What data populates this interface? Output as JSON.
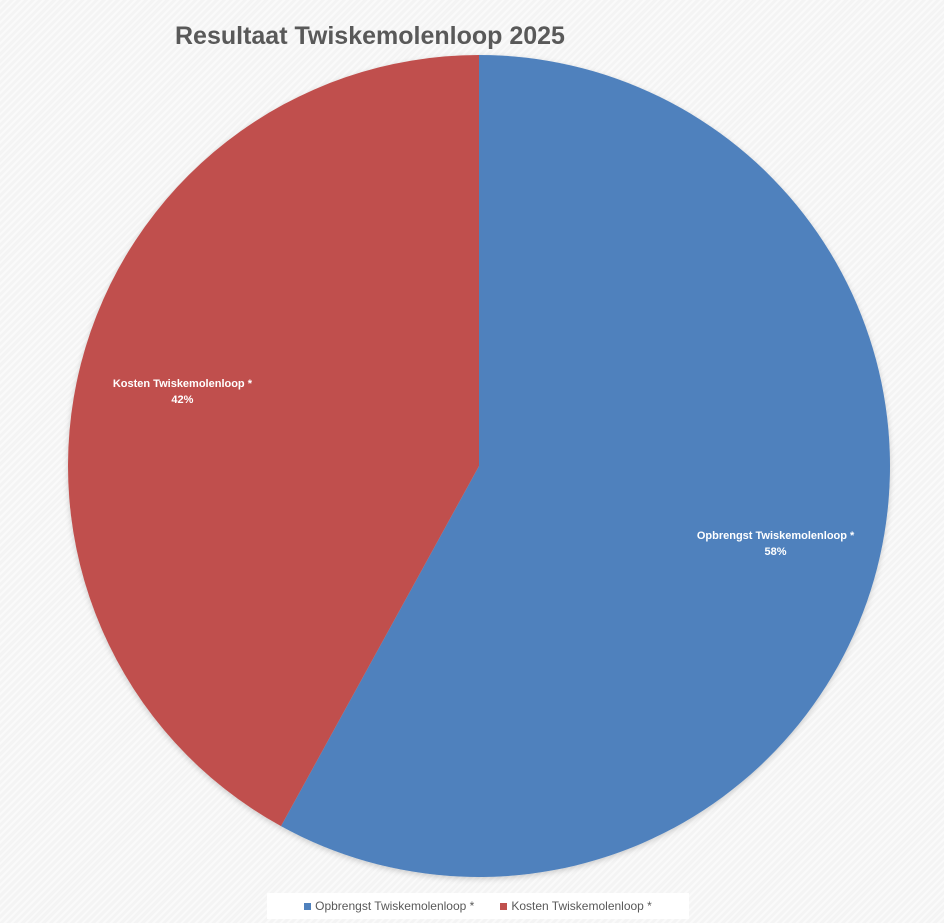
{
  "chart_data": {
    "type": "pie",
    "title": "Resultaat Twiskemolenloop 2025",
    "slices": [
      {
        "label": "Opbrengst Twiskemolenloop *",
        "value": 58,
        "value_label": "58%",
        "color": "#4f81bd"
      },
      {
        "label": "Kosten Twiskemolenloop *",
        "value": 42,
        "value_label": "42%",
        "color": "#c0504d"
      }
    ],
    "legend": {
      "placement": "bottom",
      "entries": [
        "Opbrengst Twiskemolenloop *",
        "Kosten Twiskemolenloop *"
      ]
    }
  }
}
